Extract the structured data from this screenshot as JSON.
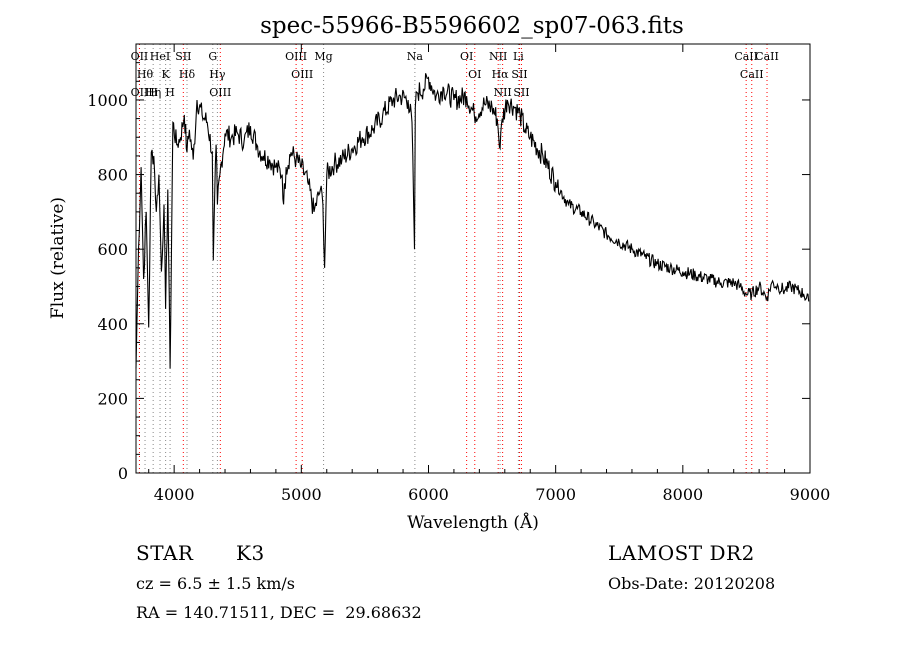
{
  "info": {
    "object_class": "STAR",
    "subclass": "K3",
    "redshift": "cz = 6.5 ± 1.5 km/s",
    "coords": "RA = 140.71511, DEC =  29.68632",
    "survey": "LAMOST DR2",
    "obs_date": "Obs-Date: 20120208"
  },
  "chart_data": {
    "type": "line",
    "title": "spec-55966-B5596602_sp07-063.fits",
    "xlabel": "Wavelength (Å)",
    "ylabel": "Flux (relative)",
    "xlim": [
      3700,
      9000
    ],
    "ylim": [
      0,
      1150
    ],
    "xticks": [
      4000,
      5000,
      6000,
      7000,
      8000,
      9000
    ],
    "yticks": [
      0,
      200,
      400,
      600,
      800,
      1000
    ],
    "grid": false,
    "line_color": "#000000",
    "marker_color": "#ff0000",
    "series": [
      {
        "x": [
          3700,
          3720,
          3740,
          3760,
          3780,
          3800,
          3820,
          3840,
          3860,
          3880,
          3900,
          3920,
          3933,
          3950,
          3968,
          3990,
          4020,
          4050,
          4080,
          4101,
          4120,
          4150,
          4180,
          4220,
          4260,
          4300,
          4308,
          4330,
          4340,
          4360,
          4400,
          4450,
          4500,
          4550,
          4600,
          4650,
          4700,
          4750,
          4800,
          4850,
          4861,
          4880,
          4920,
          4960,
          5000,
          5050,
          5100,
          5150,
          5170,
          5183,
          5200,
          5260,
          5320,
          5400,
          5480,
          5560,
          5640,
          5720,
          5780,
          5840,
          5870,
          5890,
          5896,
          5910,
          5960,
          6000,
          6060,
          6120,
          6200,
          6300,
          6360,
          6440,
          6500,
          6540,
          6563,
          6580,
          6620,
          6680,
          6720,
          6760,
          6800,
          6900,
          7000,
          7100,
          7200,
          7300,
          7400,
          7500,
          7600,
          7700,
          7800,
          7900,
          8000,
          8100,
          8200,
          8300,
          8400,
          8450,
          8498,
          8542,
          8600,
          8662,
          8700,
          8750,
          8800,
          8850,
          8900,
          8950,
          8990
        ],
        "y": [
          280,
          600,
          820,
          520,
          700,
          390,
          860,
          850,
          700,
          800,
          540,
          720,
          440,
          760,
          280,
          940,
          880,
          900,
          960,
          860,
          920,
          840,
          1000,
          960,
          940,
          860,
          570,
          880,
          720,
          800,
          910,
          900,
          910,
          890,
          930,
          880,
          850,
          840,
          820,
          800,
          720,
          820,
          860,
          840,
          820,
          780,
          700,
          760,
          720,
          550,
          800,
          830,
          840,
          870,
          900,
          920,
          960,
          1000,
          1010,
          1000,
          940,
          600,
          980,
          1020,
          1030,
          1060,
          1010,
          1030,
          1000,
          1010,
          960,
          990,
          980,
          950,
          870,
          950,
          1000,
          980,
          960,
          920,
          900,
          850,
          780,
          720,
          700,
          670,
          640,
          620,
          600,
          580,
          560,
          550,
          540,
          530,
          520,
          510,
          510,
          500,
          480,
          480,
          500,
          470,
          510,
          500,
          490,
          500,
          490,
          480,
          460
        ]
      }
    ],
    "lines": [
      {
        "wave": 3727,
        "labels": [
          "OII",
          "OII"
        ],
        "color": "red",
        "style": "dotted"
      },
      {
        "wave": 3771,
        "labels": [
          "Hθ"
        ],
        "color": "grey",
        "style": "dotted"
      },
      {
        "wave": 3835,
        "labels": [
          "Hη",
          "H"
        ],
        "color": "grey",
        "style": "dotted"
      },
      {
        "wave": 3889,
        "labels": [
          "HeI"
        ],
        "color": "grey",
        "style": "dotted"
      },
      {
        "wave": 3933,
        "labels": [
          "K"
        ],
        "color": "grey",
        "style": "dotted"
      },
      {
        "wave": 3968,
        "labels": [
          "H"
        ],
        "color": "grey",
        "style": "dotted"
      },
      {
        "wave": 4072,
        "labels": [
          "SII"
        ],
        "color": "red",
        "style": "dotted"
      },
      {
        "wave": 4101,
        "labels": [
          "Hδ"
        ],
        "color": "grey",
        "style": "dotted"
      },
      {
        "wave": 4304,
        "labels": [
          "G"
        ],
        "color": "grey",
        "style": "dotted"
      },
      {
        "wave": 4340,
        "labels": [
          "Hγ"
        ],
        "color": "grey",
        "style": "dotted"
      },
      {
        "wave": 4363,
        "labels": [
          "OIII"
        ],
        "color": "red",
        "style": "dotted"
      },
      {
        "wave": 4959,
        "labels": [
          "OIII"
        ],
        "color": "red",
        "style": "dotted"
      },
      {
        "wave": 5007,
        "labels": [
          "OIII"
        ],
        "color": "red",
        "style": "dotted"
      },
      {
        "wave": 5175,
        "labels": [
          "Mg"
        ],
        "color": "grey",
        "style": "dotted"
      },
      {
        "wave": 5893,
        "labels": [
          "Na"
        ],
        "color": "grey",
        "style": "dotted"
      },
      {
        "wave": 6300,
        "labels": [
          "OI"
        ],
        "color": "red",
        "style": "dotted"
      },
      {
        "wave": 6364,
        "labels": [
          "OI"
        ],
        "color": "red",
        "style": "dotted"
      },
      {
        "wave": 6548,
        "labels": [
          "NII"
        ],
        "color": "red",
        "style": "dotted"
      },
      {
        "wave": 6563,
        "labels": [
          "Hα"
        ],
        "color": "grey",
        "style": "dotted"
      },
      {
        "wave": 6583,
        "labels": [
          "NII"
        ],
        "color": "red",
        "style": "dotted"
      },
      {
        "wave": 6707,
        "labels": [
          "Li"
        ],
        "color": "grey",
        "style": "dotted"
      },
      {
        "wave": 6716,
        "labels": [
          "SII"
        ],
        "color": "red",
        "style": "dotted"
      },
      {
        "wave": 6731,
        "labels": [
          "SII"
        ],
        "color": "red",
        "style": "dotted"
      },
      {
        "wave": 8498,
        "labels": [
          "CaII"
        ],
        "color": "red",
        "style": "dotted"
      },
      {
        "wave": 8542,
        "labels": [
          "CaII"
        ],
        "color": "red",
        "style": "dotted"
      },
      {
        "wave": 8662,
        "labels": [
          "CaII"
        ],
        "color": "red",
        "style": "dotted"
      }
    ]
  }
}
